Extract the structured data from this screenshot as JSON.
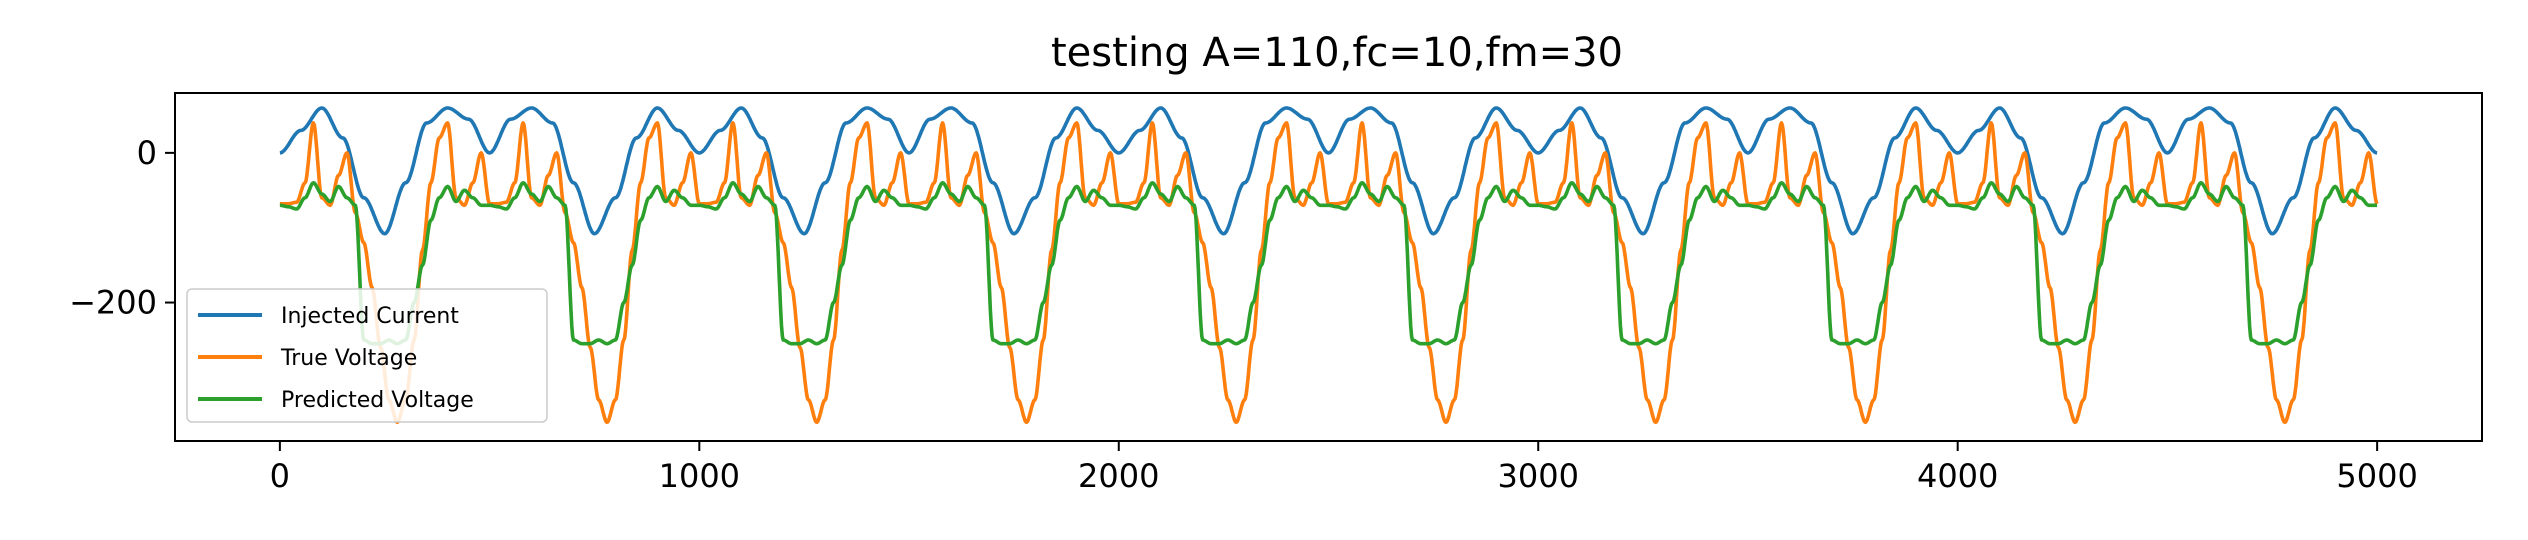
{
  "chart_data": {
    "type": "line",
    "title": "testing A=110,fc=10,fm=30",
    "xlabel": "",
    "ylabel": "",
    "xlim": [
      -250,
      5250
    ],
    "ylim": [
      -385,
      80
    ],
    "xticks": [
      0,
      1000,
      2000,
      3000,
      4000,
      5000
    ],
    "xtick_labels": [
      "0",
      "1000",
      "2000",
      "3000",
      "4000",
      "5000"
    ],
    "yticks": [
      0,
      -200
    ],
    "ytick_labels": [
      "0",
      "−200"
    ],
    "grid": false,
    "legend_position": "lower-left",
    "series": [
      {
        "name": "Injected Current",
        "color": "#1f77b4",
        "x": [
          0,
          50,
          100,
          150,
          200,
          250,
          300,
          350,
          400,
          450,
          500,
          550,
          600,
          650,
          700,
          750,
          800,
          850,
          900,
          950,
          1000
        ],
        "values": [
          0,
          30,
          60,
          20,
          -60,
          -108,
          -40,
          40,
          60,
          45,
          0,
          45,
          60,
          40,
          -40,
          -108,
          -60,
          20,
          60,
          30,
          0
        ],
        "period": 1000,
        "x_end": 5000
      },
      {
        "name": "True Voltage",
        "color": "#ff7f0e",
        "x": [
          0,
          20,
          40,
          60,
          80,
          100,
          120,
          140,
          160,
          180,
          200,
          220,
          240,
          260,
          280,
          300,
          320,
          340,
          360,
          380,
          400,
          420,
          440,
          460,
          480,
          500
        ],
        "values": [
          -68,
          -68,
          -66,
          -40,
          40,
          -60,
          -70,
          -30,
          0,
          -80,
          -120,
          -180,
          -260,
          -330,
          -360,
          -330,
          -250,
          -130,
          -40,
          20,
          40,
          -60,
          -70,
          -40,
          0,
          -68
        ],
        "period": 500,
        "x_end": 5000
      },
      {
        "name": "Predicted Voltage",
        "color": "#2ca02c",
        "x": [
          0,
          20,
          40,
          60,
          80,
          100,
          120,
          140,
          160,
          180,
          200,
          220,
          240,
          260,
          280,
          300,
          320,
          340,
          360,
          380,
          400,
          420,
          440,
          460,
          480,
          500
        ],
        "values": [
          -70,
          -72,
          -75,
          -60,
          -40,
          -55,
          -65,
          -45,
          -60,
          -70,
          -250,
          -255,
          -255,
          -250,
          -255,
          -250,
          -200,
          -150,
          -90,
          -60,
          -45,
          -65,
          -50,
          -60,
          -70,
          -70
        ],
        "period": 500,
        "x_end": 5000
      }
    ]
  }
}
